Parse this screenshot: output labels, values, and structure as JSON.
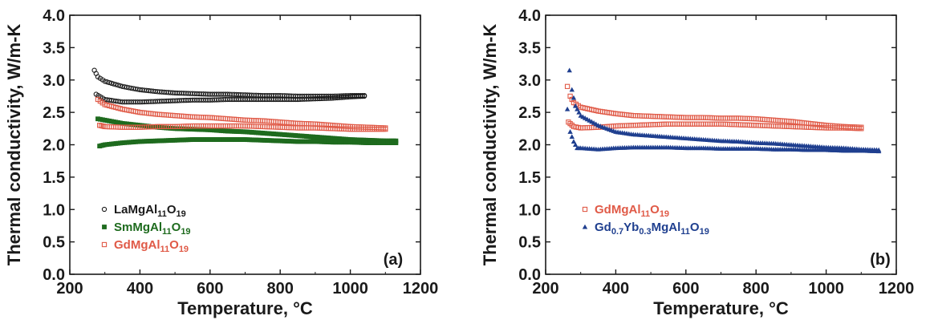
{
  "chart_data": [
    {
      "type": "scatter",
      "xlabel": "Temperature, °C",
      "ylabel": "Thermal conductivity, W/m-K",
      "xlim": [
        200,
        1200
      ],
      "ylim": [
        0.0,
        4.0
      ],
      "xticks": [
        "200",
        "400",
        "600",
        "800",
        "1000",
        "1200"
      ],
      "yticks": [
        "0.0",
        "0.5",
        "1.0",
        "1.5",
        "2.0",
        "2.5",
        "3.0",
        "3.5",
        "4.0"
      ],
      "panel_label": "(a)",
      "legend_position": "bottom-left",
      "series": [
        {
          "name": "LaMgAl11O19",
          "label_parts": [
            [
              "LaMgAl",
              ""
            ],
            [
              "11",
              "sub"
            ],
            [
              "O",
              ""
            ],
            [
              "19",
              "sub"
            ]
          ],
          "marker": "circle-open",
          "color": "#1a1a1a",
          "branches": [
            {
              "x": [
                270,
                280,
                300,
                350,
                400,
                450,
                500,
                550,
                600,
                650,
                700,
                750,
                800,
                850,
                900,
                950,
                1000,
                1040
              ],
              "y": [
                3.15,
                3.05,
                2.98,
                2.9,
                2.85,
                2.82,
                2.8,
                2.79,
                2.78,
                2.78,
                2.77,
                2.76,
                2.76,
                2.75,
                2.75,
                2.75,
                2.76,
                2.76
              ]
            },
            {
              "x": [
                275,
                300,
                350,
                400,
                450,
                500,
                550,
                600,
                650,
                700,
                750,
                800,
                850,
                900,
                950,
                1000,
                1040
              ],
              "y": [
                2.78,
                2.7,
                2.66,
                2.66,
                2.67,
                2.68,
                2.69,
                2.69,
                2.7,
                2.7,
                2.7,
                2.7,
                2.7,
                2.71,
                2.72,
                2.74,
                2.75
              ]
            }
          ]
        },
        {
          "name": "SmMgAl11O19",
          "label_parts": [
            [
              "SmMgAl",
              ""
            ],
            [
              "11",
              "sub"
            ],
            [
              "O",
              ""
            ],
            [
              "19",
              "sub"
            ]
          ],
          "marker": "square-filled",
          "color": "#1e6b1e",
          "branches": [
            {
              "x": [
                280,
                300,
                350,
                400,
                450,
                500,
                550,
                600,
                650,
                700,
                750,
                800,
                850,
                900,
                950,
                1000,
                1050,
                1100,
                1130
              ],
              "y": [
                2.4,
                2.38,
                2.33,
                2.3,
                2.27,
                2.25,
                2.24,
                2.23,
                2.21,
                2.2,
                2.18,
                2.16,
                2.14,
                2.12,
                2.1,
                2.08,
                2.07,
                2.06,
                2.06
              ]
            },
            {
              "x": [
                285,
                300,
                350,
                400,
                450,
                500,
                550,
                600,
                650,
                700,
                750,
                800,
                850,
                900,
                950,
                1000,
                1050,
                1100,
                1130
              ],
              "y": [
                1.98,
                2.0,
                2.03,
                2.05,
                2.06,
                2.07,
                2.08,
                2.08,
                2.08,
                2.08,
                2.07,
                2.06,
                2.05,
                2.05,
                2.04,
                2.04,
                2.03,
                2.03,
                2.03
              ]
            }
          ]
        },
        {
          "name": "GdMgAl11O19",
          "label_parts": [
            [
              "GdMgAl",
              ""
            ],
            [
              "11",
              "sub"
            ],
            [
              "O",
              ""
            ],
            [
              "19",
              "sub"
            ]
          ],
          "marker": "square-open",
          "color": "#e05a47",
          "branches": [
            {
              "x": [
                280,
                300,
                350,
                400,
                450,
                500,
                550,
                600,
                650,
                700,
                750,
                800,
                850,
                900,
                950,
                1000,
                1050,
                1100
              ],
              "y": [
                2.7,
                2.62,
                2.55,
                2.5,
                2.47,
                2.45,
                2.43,
                2.42,
                2.4,
                2.38,
                2.37,
                2.35,
                2.33,
                2.32,
                2.3,
                2.28,
                2.27,
                2.26
              ]
            },
            {
              "x": [
                285,
                300,
                350,
                400,
                450,
                500,
                550,
                600,
                650,
                700,
                750,
                800,
                850,
                900,
                950,
                1000,
                1050,
                1100
              ],
              "y": [
                2.3,
                2.28,
                2.27,
                2.27,
                2.28,
                2.28,
                2.29,
                2.29,
                2.29,
                2.29,
                2.28,
                2.27,
                2.26,
                2.26,
                2.25,
                2.24,
                2.24,
                2.24
              ]
            }
          ]
        }
      ]
    },
    {
      "type": "scatter",
      "xlabel": "Temperature, °C",
      "ylabel": "Thermal conductivity, W/m-K",
      "xlim": [
        200,
        1200
      ],
      "ylim": [
        0.0,
        4.0
      ],
      "xticks": [
        "200",
        "400",
        "600",
        "800",
        "1000",
        "1200"
      ],
      "yticks": [
        "0.0",
        "0.5",
        "1.0",
        "1.5",
        "2.0",
        "2.5",
        "3.0",
        "3.5",
        "4.0"
      ],
      "panel_label": "(b)",
      "legend_position": "bottom-left",
      "series": [
        {
          "name": "GdMgAl11O19",
          "label_parts": [
            [
              "GdMgAl",
              ""
            ],
            [
              "11",
              "sub"
            ],
            [
              "O",
              ""
            ],
            [
              "19",
              "sub"
            ]
          ],
          "marker": "square-open",
          "color": "#e05a47",
          "branches": [
            {
              "x": [
                262,
                270,
                280,
                300,
                350,
                400,
                450,
                500,
                550,
                600,
                650,
                700,
                750,
                800,
                850,
                900,
                950,
                1000,
                1050,
                1100
              ],
              "y": [
                2.9,
                2.75,
                2.65,
                2.58,
                2.52,
                2.48,
                2.45,
                2.44,
                2.43,
                2.42,
                2.42,
                2.41,
                2.41,
                2.4,
                2.38,
                2.36,
                2.33,
                2.3,
                2.28,
                2.27
              ]
            },
            {
              "x": [
                265,
                280,
                300,
                350,
                400,
                450,
                500,
                550,
                600,
                650,
                700,
                750,
                800,
                850,
                900,
                950,
                1000,
                1050,
                1100
              ],
              "y": [
                2.35,
                2.28,
                2.26,
                2.27,
                2.29,
                2.3,
                2.31,
                2.32,
                2.32,
                2.32,
                2.32,
                2.31,
                2.3,
                2.29,
                2.28,
                2.27,
                2.26,
                2.26,
                2.25
              ]
            }
          ]
        },
        {
          "name": "Gd0.7Yb0.3MgAl11O19",
          "label_parts": [
            [
              "Gd",
              ""
            ],
            [
              "0.7",
              "sub"
            ],
            [
              "Yb",
              ""
            ],
            [
              "0.3",
              "sub"
            ],
            [
              "MgAl",
              ""
            ],
            [
              "11",
              "sub"
            ],
            [
              "O",
              ""
            ],
            [
              "19",
              "sub"
            ]
          ],
          "marker": "triangle-filled",
          "color": "#1f3f8f",
          "branches": [
            {
              "x": [
                262,
                268,
                275,
                285,
                300,
                350,
                400,
                450,
                500,
                550,
                600,
                650,
                700,
                750,
                800,
                850,
                900,
                950,
                1000,
                1050,
                1100,
                1150
              ],
              "y": [
                2.55,
                3.15,
                2.85,
                2.6,
                2.45,
                2.3,
                2.2,
                2.16,
                2.14,
                2.12,
                2.1,
                2.08,
                2.06,
                2.05,
                2.03,
                2.02,
                2.0,
                1.98,
                1.96,
                1.95,
                1.93,
                1.92
              ]
            },
            {
              "x": [
                270,
                280,
                290,
                300,
                350,
                400,
                450,
                500,
                550,
                600,
                650,
                700,
                750,
                800,
                850,
                900,
                950,
                1000,
                1050,
                1100,
                1150
              ],
              "y": [
                2.2,
                2.05,
                1.95,
                1.95,
                1.93,
                1.95,
                1.96,
                1.96,
                1.96,
                1.95,
                1.95,
                1.94,
                1.94,
                1.94,
                1.93,
                1.93,
                1.92,
                1.92,
                1.91,
                1.91,
                1.9
              ]
            }
          ]
        }
      ]
    }
  ]
}
